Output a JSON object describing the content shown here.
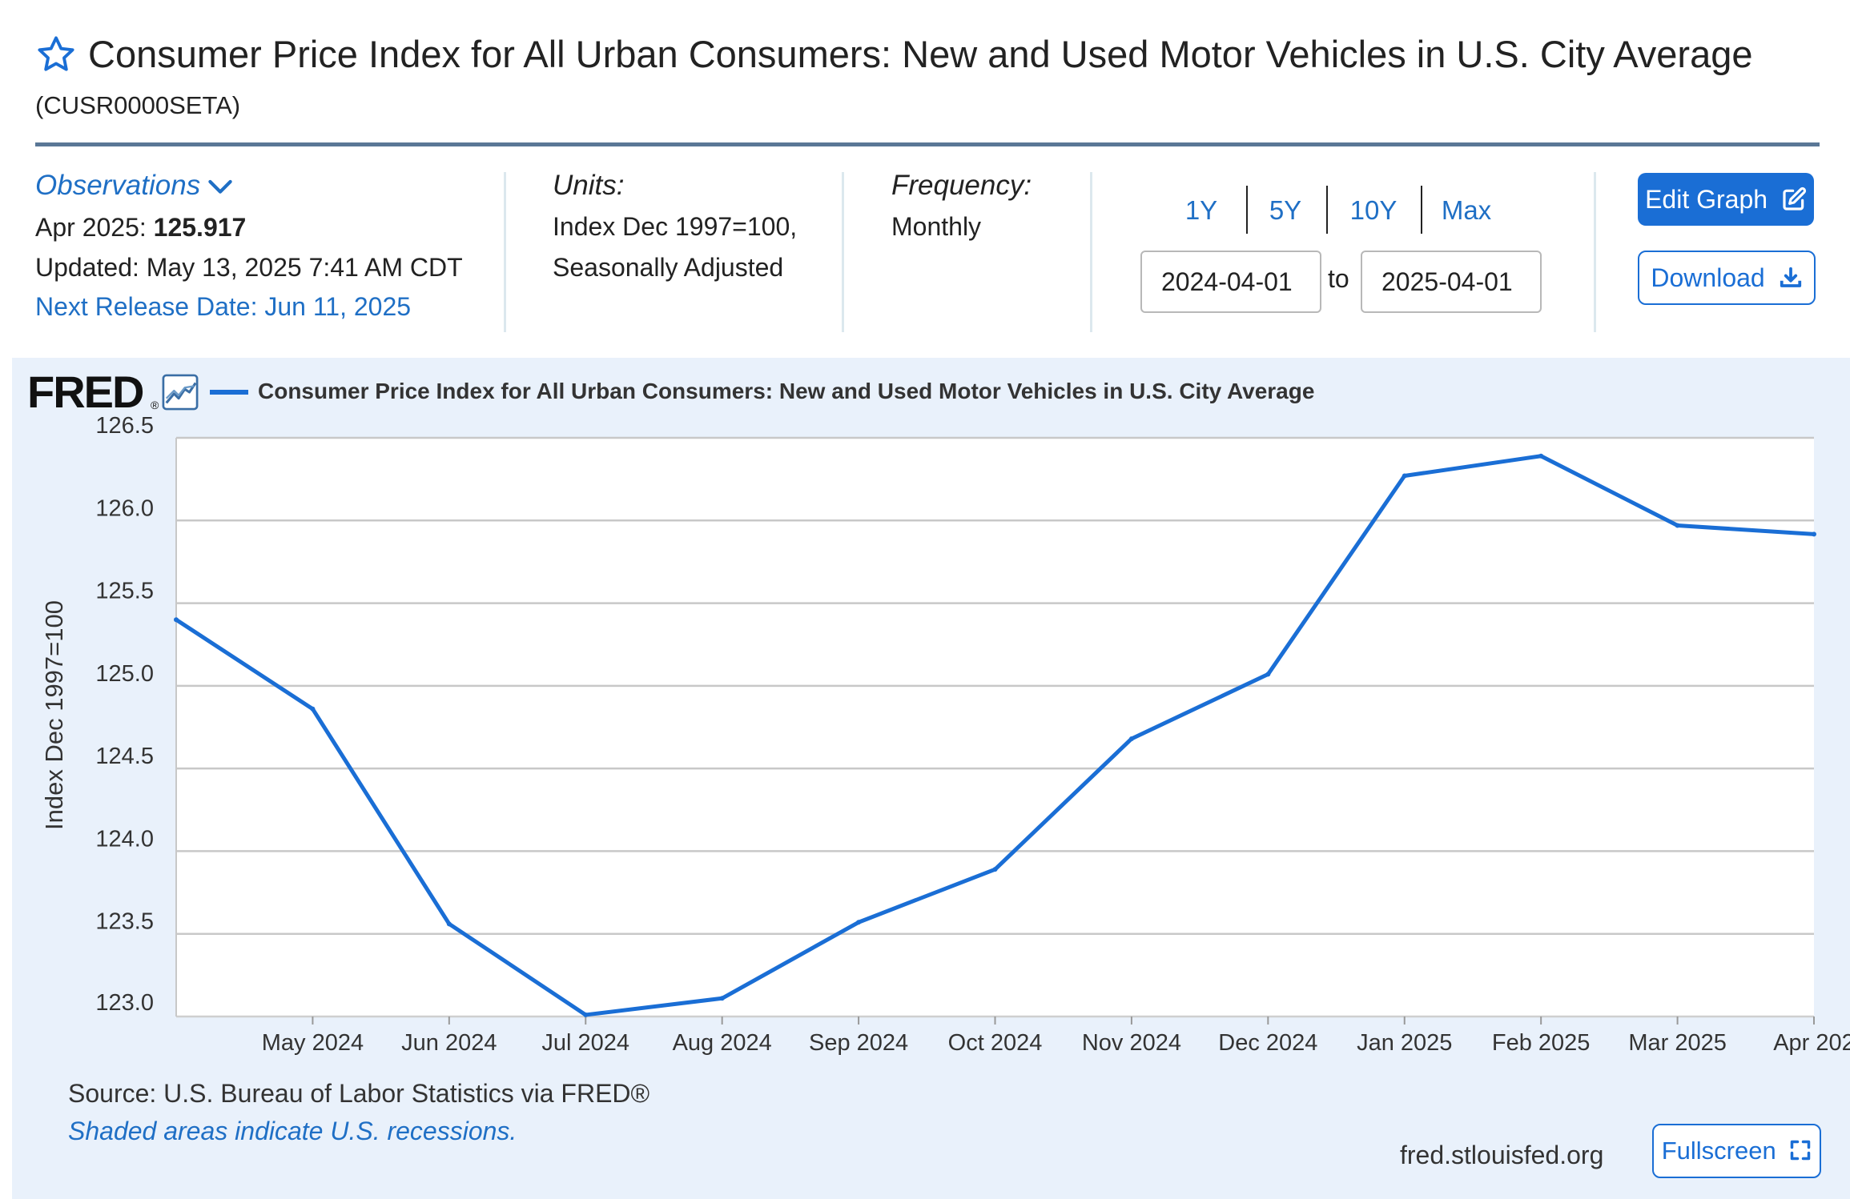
{
  "header": {
    "title": "Consumer Price Index for All Urban Consumers: New and Used Motor Vehicles in U.S. City Average",
    "series_id": "(CUSR0000SETA)",
    "star_icon": "star-outline-icon"
  },
  "observations": {
    "label": "Observations",
    "date": "Apr 2025:",
    "value": "125.917",
    "updated": "Updated: May 13, 2025 7:41 AM CDT",
    "next_release": "Next Release Date: Jun 11, 2025"
  },
  "units": {
    "label": "Units:",
    "line1": "Index Dec 1997=100,",
    "line2": "Seasonally Adjusted"
  },
  "frequency": {
    "label": "Frequency:",
    "value": "Monthly"
  },
  "range": {
    "buttons": [
      "1Y",
      "5Y",
      "10Y",
      "Max"
    ],
    "start": "2024-04-01",
    "to": "to",
    "end": "2025-04-01"
  },
  "actions": {
    "edit_graph": "Edit Graph",
    "download": "Download",
    "fullscreen": "Fullscreen"
  },
  "chart_header": {
    "logo": "FRED",
    "reg": "®",
    "legend": "Consumer Price Index for All Urban Consumers: New and Used Motor Vehicles in U.S. City Average"
  },
  "footer": {
    "source": "Source: U.S. Bureau of Labor Statistics via FRED®",
    "recession_note": "Shaded areas indicate U.S. recessions.",
    "site": "fred.stlouisfed.org"
  },
  "colors": {
    "accent": "#1a6ed5",
    "link": "#1f6fc5",
    "panel": "#e9f1fb",
    "rule": "#5a7796"
  },
  "chart_data": {
    "type": "line",
    "title": "",
    "ylabel": "Index Dec 1997=100",
    "xlabel": "",
    "ylim": [
      123.0,
      126.5
    ],
    "yticks": [
      "126.5",
      "126.0",
      "125.5",
      "125.0",
      "124.5",
      "124.0",
      "123.5",
      "123.0"
    ],
    "x": [
      "2024-04-01",
      "2024-05-01",
      "2024-06-01",
      "2024-07-01",
      "2024-08-01",
      "2024-09-01",
      "2024-10-01",
      "2024-11-01",
      "2024-12-01",
      "2025-01-01",
      "2025-02-01",
      "2025-03-01",
      "2025-04-01"
    ],
    "xtick_labels": [
      "May 2024",
      "Jun 2024",
      "Jul 2024",
      "Aug 2024",
      "Sep 2024",
      "Oct 2024",
      "Nov 2024",
      "Dec 2024",
      "Jan 2025",
      "Feb 2025",
      "Mar 2025",
      "Apr 202"
    ],
    "series": [
      {
        "name": "Consumer Price Index for All Urban Consumers: New and Used Motor Vehicles in U.S. City Average",
        "values": [
          125.4,
          124.86,
          123.56,
          123.01,
          123.11,
          123.57,
          123.89,
          124.68,
          125.07,
          126.27,
          126.39,
          125.97,
          125.917
        ]
      }
    ],
    "grid": true,
    "legend": "top-left"
  }
}
